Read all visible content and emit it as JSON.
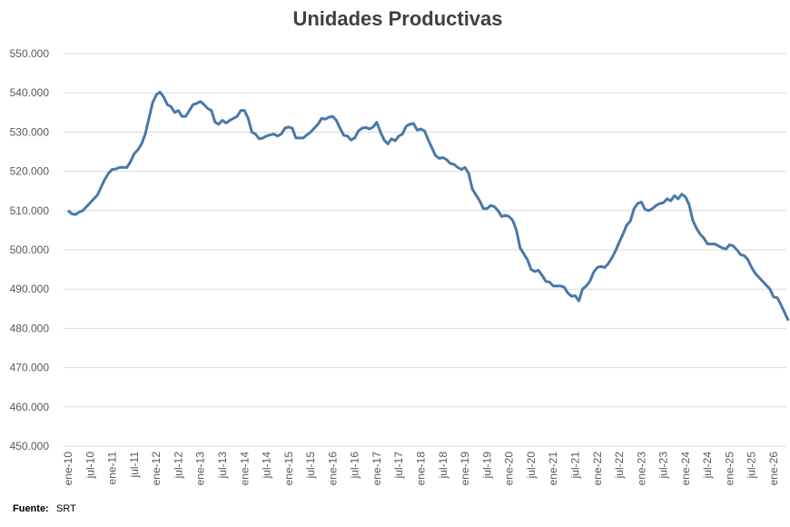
{
  "chart_data": {
    "type": "line",
    "title": "Unidades Productivas",
    "source_label": "Fuente:",
    "source": "SRT",
    "categories": [
      "ene-10",
      null,
      null,
      null,
      null,
      null,
      "jul-10",
      null,
      null,
      null,
      null,
      null,
      "ene-11",
      null,
      null,
      null,
      null,
      null,
      "jul-11",
      null,
      null,
      null,
      null,
      null,
      "ene-12",
      null,
      null,
      null,
      null,
      null,
      "jul-12",
      null,
      null,
      null,
      null,
      null,
      "ene-13",
      null,
      null,
      null,
      null,
      null,
      "jul-13",
      null,
      null,
      null,
      null,
      null,
      "ene-14",
      null,
      null,
      null,
      null,
      null,
      "jul-14",
      null,
      null,
      null,
      null,
      null,
      "ene-15",
      null,
      null,
      null,
      null,
      null,
      "jul-15",
      null,
      null,
      null,
      null,
      null,
      "ene-16",
      null,
      null,
      null,
      null,
      null,
      "jul-16",
      null,
      null,
      null,
      null,
      null,
      "ene-17",
      null,
      null,
      null,
      null,
      null,
      "jul-17",
      null,
      null,
      null,
      null,
      null,
      "ene-18",
      null,
      null,
      null,
      null,
      null,
      "jul-18",
      null,
      null,
      null,
      null,
      null,
      "ene-19",
      null,
      null,
      null,
      null,
      null,
      "jul-19",
      null,
      null,
      null,
      null,
      null,
      "ene-20",
      null,
      null,
      null,
      null,
      null,
      "jul-20",
      null,
      null,
      null,
      null,
      null,
      "ene-21",
      null,
      null,
      null,
      null,
      null,
      "jul-21",
      null,
      null,
      null,
      null,
      null,
      "ene-22",
      null,
      null,
      null,
      null,
      null,
      "jul-22",
      null,
      null,
      null,
      null,
      null,
      "ene-23",
      null,
      null,
      null,
      null,
      null,
      "jul-23",
      null,
      null,
      null,
      null,
      null,
      "ene-24",
      null,
      null,
      null,
      null,
      null,
      "jul-24",
      null,
      null,
      null,
      null,
      null,
      "ene-25",
      null,
      null,
      null,
      null,
      null,
      "jul-25",
      null,
      null,
      null,
      null,
      null,
      "ene-26",
      null,
      null,
      null,
      null
    ],
    "series": [
      {
        "name": "Unidades Productivas",
        "color": "#4a78a8",
        "values": [
          510000,
          509200,
          509000,
          509600,
          510000,
          511000,
          512000,
          513000,
          514000,
          516000,
          518000,
          519500,
          520500,
          520600,
          521000,
          521000,
          521000,
          522500,
          524500,
          525500,
          527000,
          529500,
          533500,
          537500,
          539500,
          540200,
          539000,
          537000,
          536500,
          535000,
          535500,
          534000,
          534000,
          535500,
          537000,
          537300,
          537800,
          537000,
          536000,
          535500,
          532500,
          532000,
          533000,
          532300,
          533000,
          533500,
          534000,
          535500,
          535500,
          533500,
          530000,
          529500,
          528300,
          528500,
          529000,
          529300,
          529500,
          529000,
          529500,
          531000,
          531300,
          531000,
          528500,
          528500,
          528500,
          529300,
          530000,
          531000,
          532000,
          533500,
          533300,
          533800,
          534000,
          533000,
          531000,
          529200,
          529000,
          528000,
          528500,
          530300,
          531000,
          531200,
          530800,
          531300,
          532500,
          530000,
          528000,
          527000,
          528300,
          527800,
          529000,
          529500,
          531500,
          532000,
          532200,
          530500,
          530800,
          530300,
          528000,
          526000,
          524000,
          523300,
          523500,
          523000,
          522000,
          521800,
          521000,
          520500,
          521000,
          519500,
          515500,
          514000,
          512500,
          510500,
          510500,
          511300,
          511000,
          510000,
          508500,
          508800,
          508500,
          507500,
          505000,
          500500,
          499000,
          497500,
          495000,
          494500,
          494800,
          493500,
          492000,
          491800,
          490800,
          490800,
          490800,
          490500,
          489000,
          488200,
          488300,
          487000,
          490000,
          490800,
          492000,
          494300,
          495500,
          495800,
          495500,
          496500,
          498000,
          499800,
          502000,
          504000,
          506300,
          507300,
          510500,
          511800,
          512200,
          510300,
          510000,
          510500,
          511300,
          511800,
          512000,
          513000,
          512500,
          513800,
          513000,
          514200,
          513500,
          511500,
          507500,
          505500,
          504000,
          503000,
          501500,
          501500,
          501500,
          501000,
          500500,
          500200,
          501300,
          501000,
          500000,
          498800,
          498500,
          497500,
          495500,
          494000,
          493000,
          492000,
          491000,
          490000,
          488000,
          487800,
          486000,
          484000,
          482000
        ]
      }
    ],
    "ylim": [
      450000,
      550000
    ],
    "yticks": [
      {
        "value": 450000,
        "label": "450.000"
      },
      {
        "value": 460000,
        "label": "460.000"
      },
      {
        "value": 470000,
        "label": "470.000"
      },
      {
        "value": 480000,
        "label": "480.000"
      },
      {
        "value": 490000,
        "label": "490.000"
      },
      {
        "value": 500000,
        "label": "500.000"
      },
      {
        "value": 510000,
        "label": "510.000"
      },
      {
        "value": 520000,
        "label": "520.000"
      },
      {
        "value": 530000,
        "label": "530.000"
      },
      {
        "value": 540000,
        "label": "540.000"
      },
      {
        "value": 550000,
        "label": "550.000"
      }
    ],
    "grid": true
  }
}
